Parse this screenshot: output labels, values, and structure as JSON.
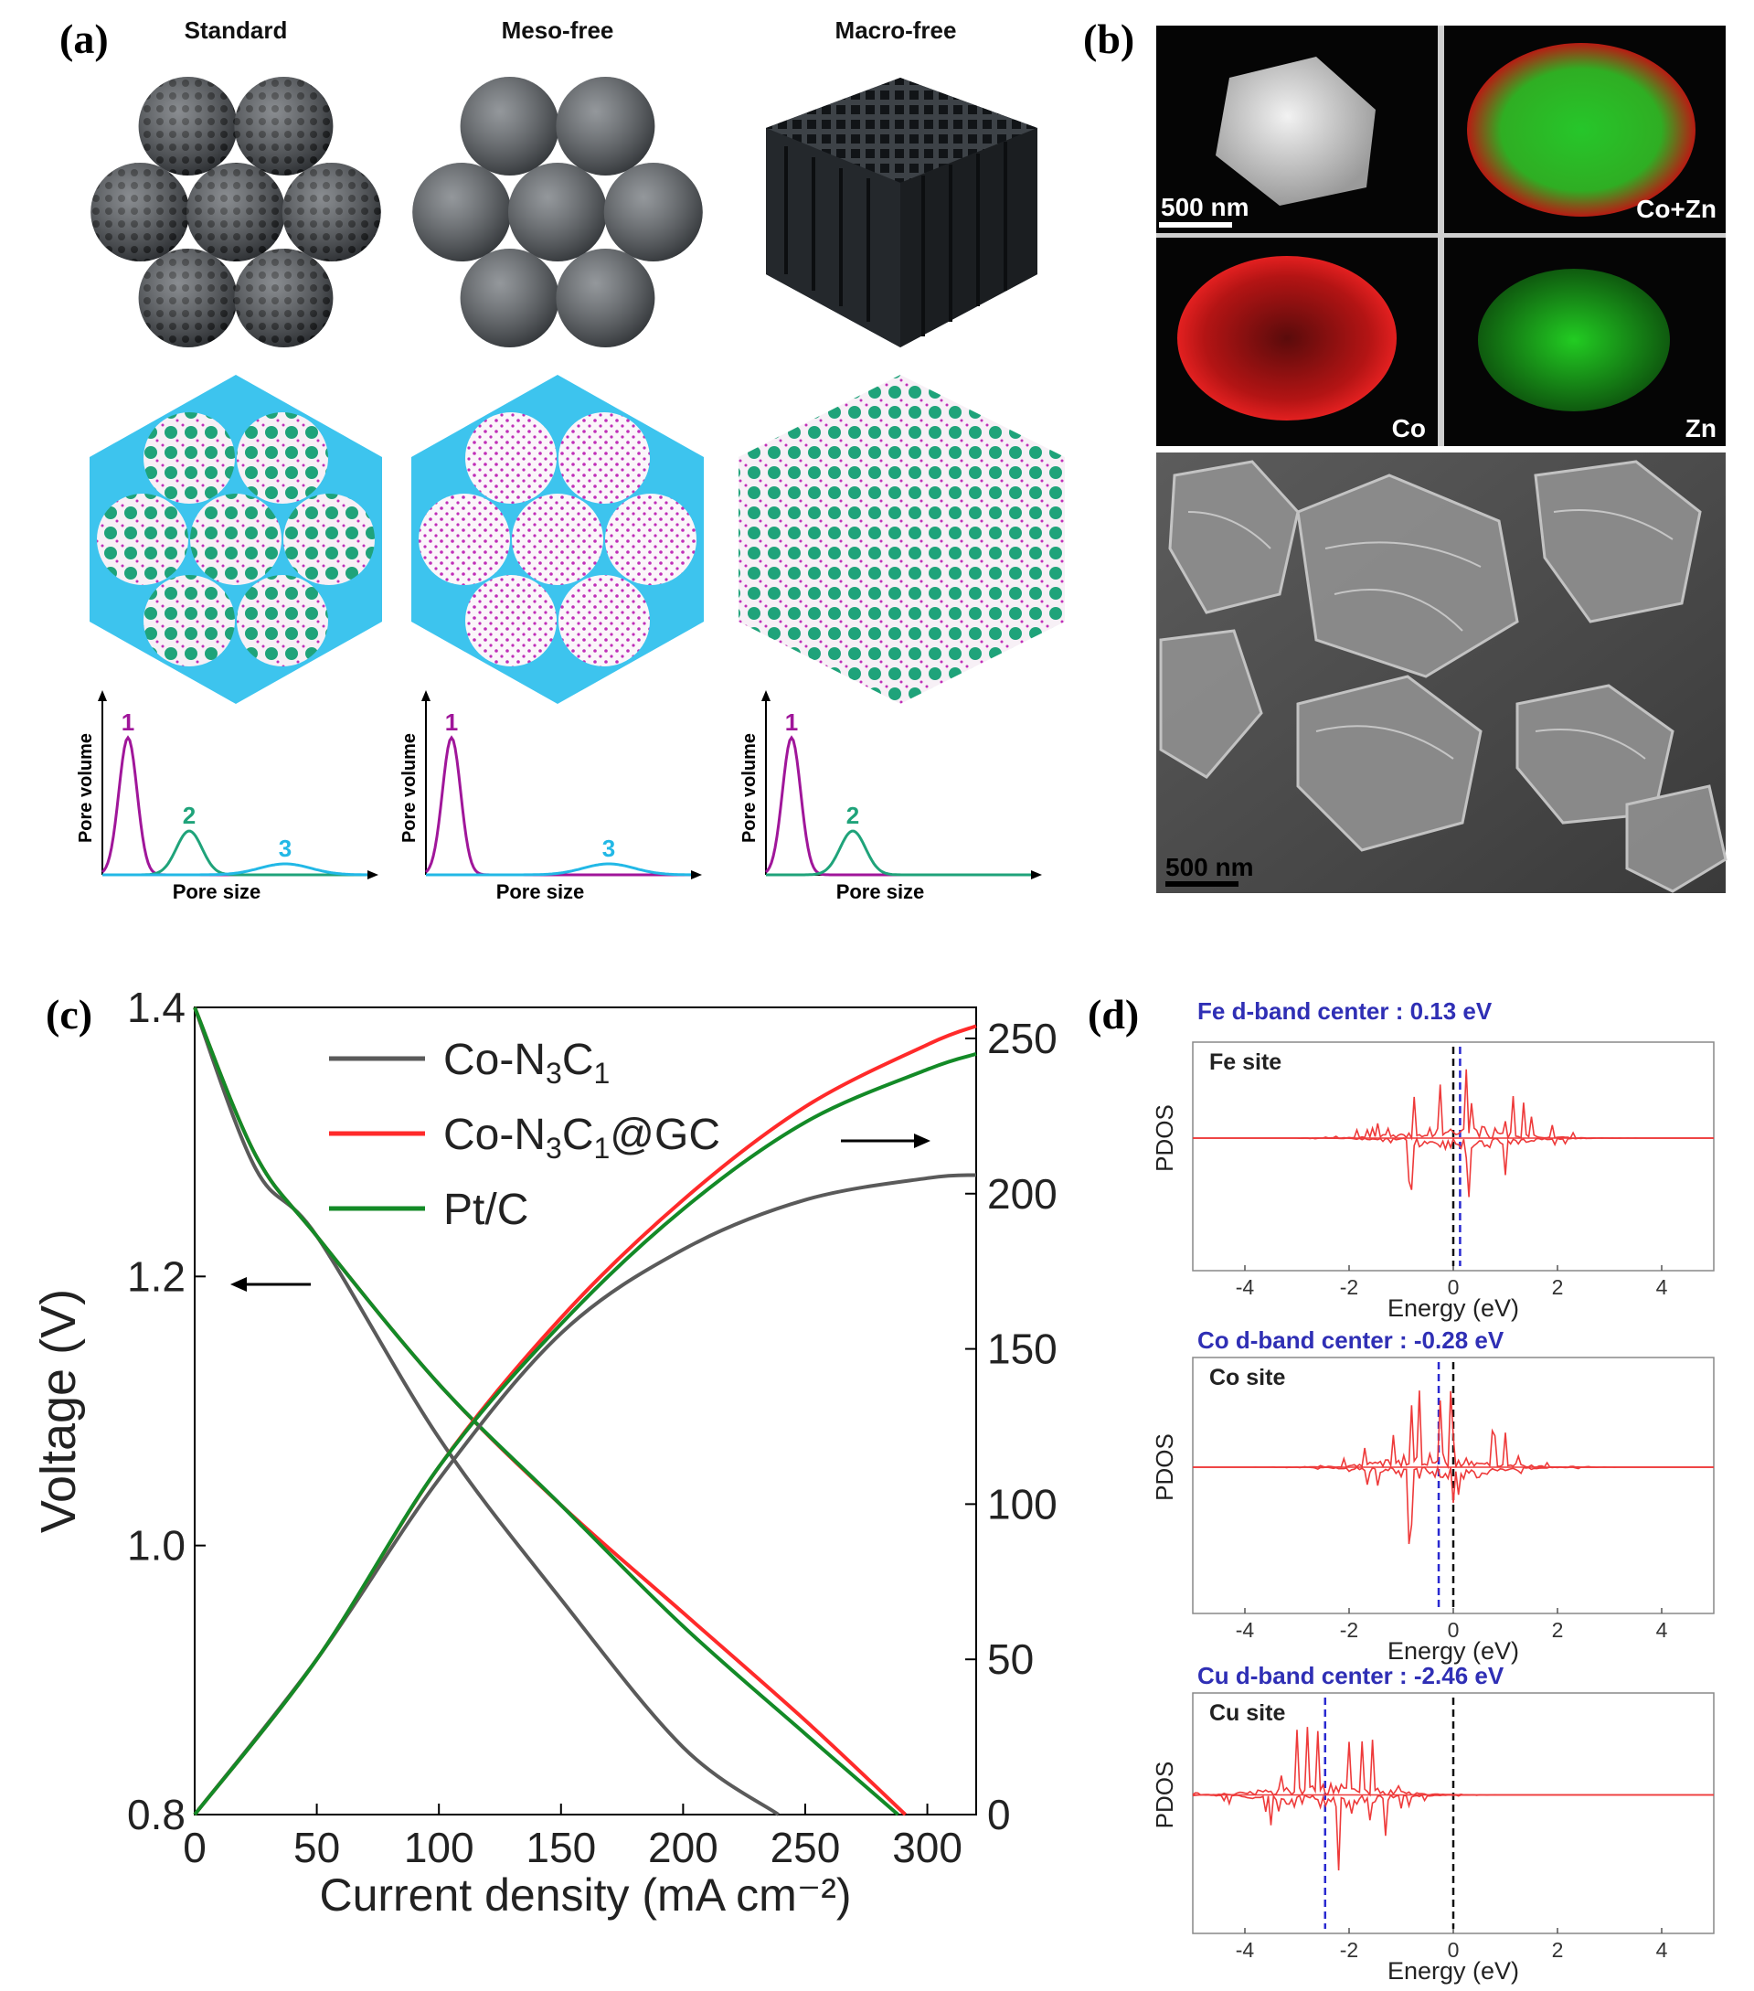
{
  "panel_a": {
    "letter": "(a)",
    "columns": [
      {
        "title": "Standard",
        "peaks": [
          "1",
          "2",
          "3"
        ]
      },
      {
        "title": "Meso-free",
        "peaks": [
          "1",
          "3"
        ]
      },
      {
        "title": "Macro-free",
        "peaks": [
          "1",
          "2"
        ]
      }
    ],
    "ylabel": "Pore volume",
    "xlabel": "Pore size",
    "colors": {
      "peak1": "#a0169a",
      "peak2": "#1fa37a",
      "peak3": "#22b8e6",
      "bulk": "#3dc4ee"
    }
  },
  "panel_b": {
    "letter": "(b)",
    "map_labels": {
      "cozn": "Co+Zn",
      "co": "Co",
      "zn": "Zn"
    },
    "scale_top": "500 nm",
    "scale_sem": "500 nm"
  },
  "panel_c": {
    "letter": "(c)",
    "chart_data": {
      "type": "line",
      "xlabel": "Current density (mA cm⁻²)",
      "ylabel_left": "Voltage (V)",
      "xlim": [
        0,
        320
      ],
      "ylim_left": [
        0.8,
        1.4
      ],
      "ylim_right": [
        0,
        260
      ],
      "x_ticks": [
        "0",
        "50",
        "100",
        "150",
        "200",
        "250",
        "300"
      ],
      "y_left_ticks": [
        "0.8",
        "1.0",
        "1.2",
        "1.4"
      ],
      "y_right_ticks": [
        "0",
        "50",
        "100",
        "150",
        "200",
        "250"
      ],
      "legend": [
        {
          "name": "Co-N3C1",
          "color": "#5a5a5a"
        },
        {
          "name": "Co-N3C1@GC",
          "color": "#ff2a2a"
        },
        {
          "name": "Pt/C",
          "color": "#138a27"
        }
      ],
      "series": [
        {
          "name": "Co-N3C1 voltage",
          "axis": "left",
          "color": "#5a5a5a",
          "x": [
            0,
            25,
            50,
            100,
            150,
            200,
            239
          ],
          "y": [
            1.4,
            1.28,
            1.23,
            1.08,
            0.96,
            0.85,
            0.8
          ]
        },
        {
          "name": "Co-N3C1@GC voltage",
          "axis": "left",
          "color": "#ff2a2a",
          "x": [
            0,
            25,
            50,
            100,
            150,
            200,
            250,
            291
          ],
          "y": [
            1.4,
            1.29,
            1.23,
            1.12,
            1.03,
            0.95,
            0.87,
            0.8
          ]
        },
        {
          "name": "Pt/C voltage",
          "axis": "left",
          "color": "#138a27",
          "x": [
            0,
            25,
            50,
            100,
            150,
            200,
            250,
            288
          ],
          "y": [
            1.4,
            1.29,
            1.23,
            1.12,
            1.03,
            0.94,
            0.86,
            0.8
          ]
        },
        {
          "name": "Co-N3C1 power",
          "axis": "right",
          "color": "#5a5a5a",
          "x": [
            0,
            50,
            100,
            150,
            200,
            250,
            300,
            320
          ],
          "y": [
            0,
            50,
            108,
            155,
            182,
            198,
            205,
            206
          ]
        },
        {
          "name": "Co-N3C1@GC power",
          "axis": "right",
          "color": "#ff2a2a",
          "x": [
            0,
            50,
            100,
            150,
            200,
            250,
            300,
            320
          ],
          "y": [
            0,
            50,
            112,
            160,
            198,
            228,
            248,
            254
          ]
        },
        {
          "name": "Pt/C power",
          "axis": "right",
          "color": "#138a27",
          "x": [
            0,
            50,
            100,
            150,
            200,
            250,
            300,
            320
          ],
          "y": [
            0,
            50,
            112,
            158,
            195,
            223,
            240,
            245
          ]
        }
      ]
    }
  },
  "panel_d": {
    "letter": "(d)",
    "ylabel": "PDOS",
    "xlabel": "Energy (eV)",
    "x_ticks": [
      "-4",
      "-2",
      "0",
      "2",
      "4"
    ],
    "chart_data": [
      {
        "type": "line",
        "title": "Fe d-band center : 0.13 eV",
        "site": "Fe site",
        "xlim": [
          -5,
          5
        ],
        "center": 0.13,
        "fermi": 0
      },
      {
        "type": "line",
        "title": "Co d-band center : -0.28 eV",
        "site": "Co site",
        "xlim": [
          -5,
          5
        ],
        "center": -0.28,
        "fermi": 0
      },
      {
        "type": "line",
        "title": "Cu d-band center : -2.46 eV",
        "site": "Cu site",
        "xlim": [
          -5,
          5
        ],
        "center": -2.46,
        "fermi": 0
      }
    ]
  }
}
